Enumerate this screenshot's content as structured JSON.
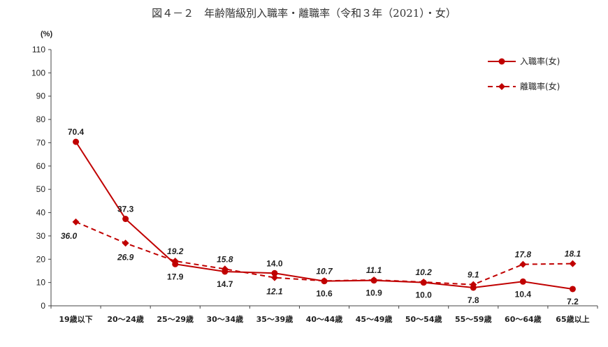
{
  "title": "図４－２　年齢階級別入職率・離職率（令和３年（2021）・女）",
  "chart_data": {
    "type": "line",
    "ylabel": "(%)",
    "ylim": [
      0,
      110
    ],
    "yticks": [
      0,
      10,
      20,
      30,
      40,
      50,
      60,
      70,
      80,
      90,
      100,
      110
    ],
    "categories": [
      "19歳以下",
      "20～24歳",
      "25～29歳",
      "30～34歳",
      "35～39歳",
      "40～44歳",
      "45～49歳",
      "50～54歳",
      "55～59歳",
      "60～64歳",
      "65歳以上"
    ],
    "series": [
      {
        "name": "入職率(女)",
        "values": [
          70.4,
          37.3,
          17.9,
          14.7,
          14.0,
          10.6,
          10.9,
          10.0,
          7.8,
          10.4,
          7.2
        ],
        "labels": [
          "70.4",
          "37.3",
          "17.9",
          "14.7",
          "14.0",
          "10.6",
          "10.9",
          "10.0",
          "7.8",
          "10.4",
          "7.2"
        ],
        "style": "solid",
        "marker": "circle",
        "color": "#c00000"
      },
      {
        "name": "離職率(女)",
        "values": [
          36.0,
          26.9,
          19.2,
          15.8,
          12.1,
          10.7,
          11.1,
          10.2,
          9.1,
          17.8,
          18.1
        ],
        "labels": [
          "36.0",
          "26.9",
          "19.2",
          "15.8",
          "12.1",
          "10.7",
          "11.1",
          "10.2",
          "9.1",
          "17.8",
          "18.1"
        ],
        "style": "dashed",
        "marker": "diamond",
        "color": "#c00000"
      }
    ],
    "legend_position": "top-right",
    "grid": false
  }
}
